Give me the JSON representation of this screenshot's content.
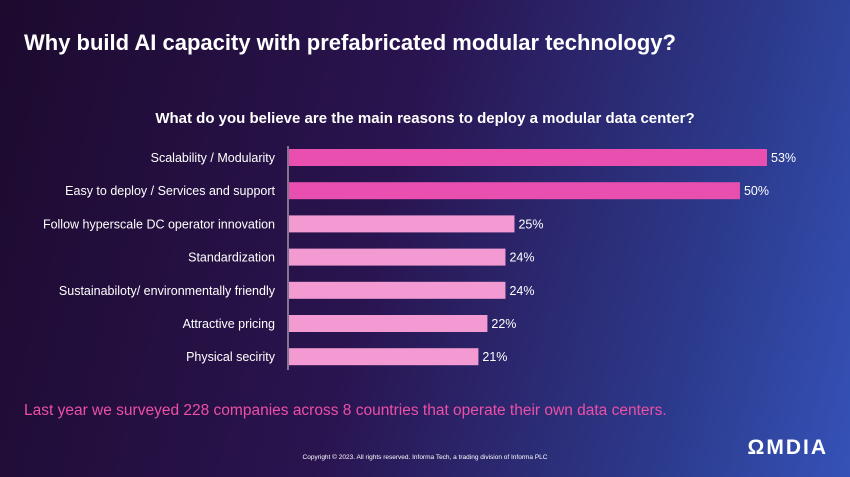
{
  "slide": {
    "title": "Why build AI capacity with prefabricated modular technology?",
    "footnote": "Last year we surveyed 228 companies across 8 countries that operate their own data centers.",
    "copyright": "Copyright © 2023. All rights reserved. Informa Tech, a trading division of Informa PLC",
    "logo_text": "ΩMDIA"
  },
  "chart_data": {
    "type": "bar",
    "orientation": "horizontal",
    "title": "What do you believe are the main reasons to deploy a modular data center?",
    "categories": [
      "Scalability / Modularity",
      "Easy to deploy / Services and support",
      "Follow hyperscale DC operator innovation",
      "Standardization",
      "Sustainabiloty/ environmentally friendly",
      "Attractive pricing",
      "Physical secirity"
    ],
    "values": [
      53,
      50,
      25,
      24,
      24,
      22,
      21
    ],
    "value_labels": [
      "53%",
      "50%",
      "25%",
      "24%",
      "24%",
      "22%",
      "21%"
    ],
    "xlim": [
      0,
      60
    ],
    "grid": false,
    "colors": {
      "highlight": "#e84fae",
      "normal": "#f39ad2"
    }
  }
}
